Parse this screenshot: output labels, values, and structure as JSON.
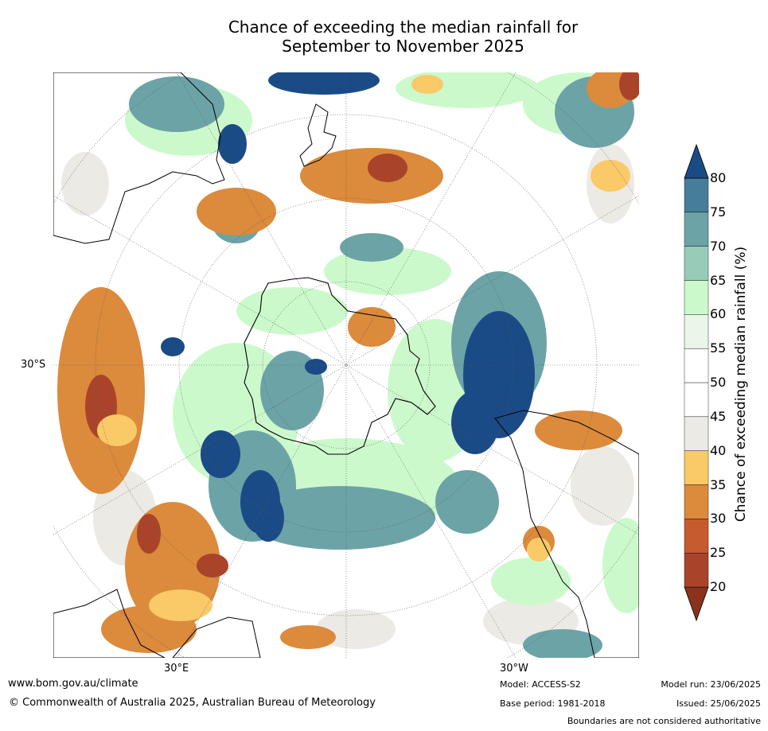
{
  "title_line1": "Chance of exceeding the median rainfall for",
  "title_line2": "September to November 2025",
  "map": {
    "projection": "south-polar",
    "lat_label": "30°S",
    "lon_label_east": "30°E",
    "lon_label_west": "30°W"
  },
  "colorbar": {
    "title": "Chance of exceeding median rainfall (%)",
    "ticks": [
      "20",
      "25",
      "30",
      "35",
      "40",
      "45",
      "50",
      "55",
      "60",
      "65",
      "70",
      "75",
      "80"
    ],
    "colors": [
      "#8a321b",
      "#a9442a",
      "#c65b2e",
      "#dc8a3c",
      "#fac968",
      "#eceae5",
      "#ffffff",
      "#ffffff",
      "#eaf6e8",
      "#ccf9cc",
      "#99ccb8",
      "#6ca3a7",
      "#467d9a",
      "#1b4b86"
    ]
  },
  "footer": {
    "website": "www.bom.gov.au/climate",
    "copyright": "© Commonwealth of Australia 2025, Australian Bureau of Meteorology",
    "model": "Model: ACCESS-S2",
    "base_period": "Base period: 1981-2018",
    "model_run": "Model run: 23/06/2025",
    "issued": "Issued: 25/06/2025",
    "disclaimer": "Boundaries are not considered authoritative"
  }
}
